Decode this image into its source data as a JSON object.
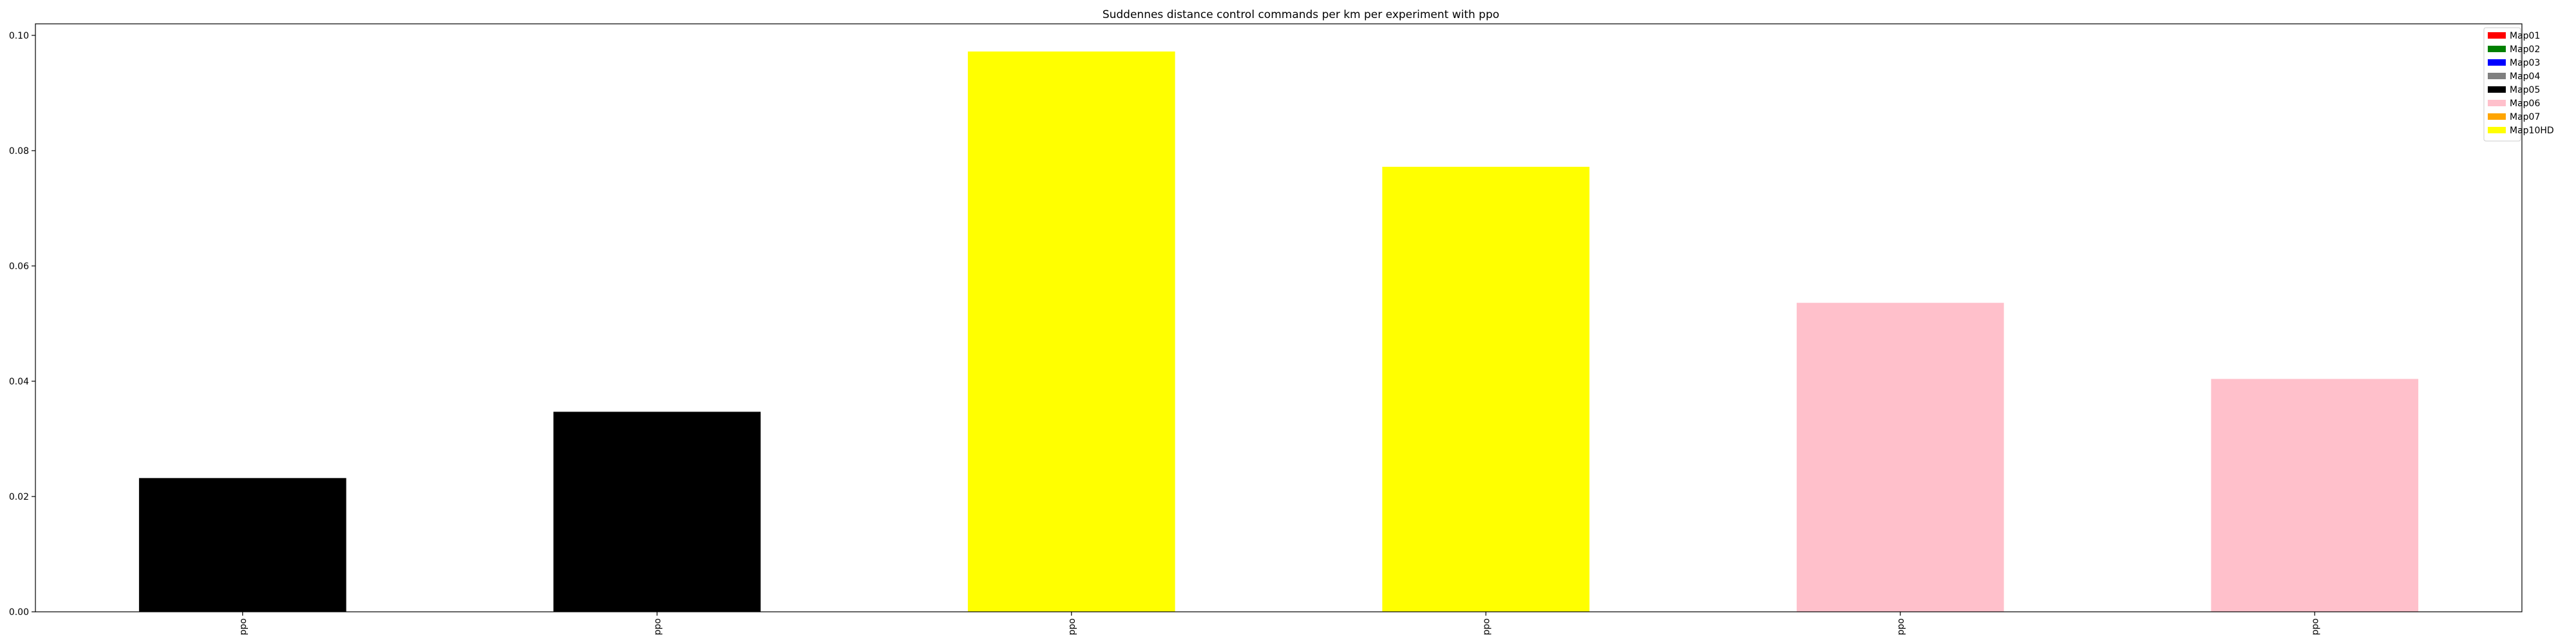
{
  "chart_data": {
    "type": "bar",
    "title": "Suddennes distance control commands per km per experiment with ppo",
    "xlabel": "",
    "ylabel": "",
    "categories": [
      "ppo",
      "ppo",
      "ppo",
      "ppo",
      "ppo",
      "ppo"
    ],
    "values": [
      0.0232,
      0.0347,
      0.0972,
      0.0772,
      0.0536,
      0.0404
    ],
    "bar_colors": [
      "#000000",
      "#000000",
      "#ffff00",
      "#ffff00",
      "#ffc0cb",
      "#ffc0cb"
    ],
    "ylim": [
      0,
      0.102
    ],
    "yticks": [
      "0.00",
      "0.02",
      "0.04",
      "0.06",
      "0.08",
      "0.10"
    ],
    "ytick_values": [
      0,
      0.02,
      0.04,
      0.06,
      0.08,
      0.1
    ],
    "grid": false,
    "legend": {
      "placement": "top-right",
      "entries": [
        {
          "name": "Map01",
          "color": "#ff0000"
        },
        {
          "name": "Map02",
          "color": "#008000"
        },
        {
          "name": "Map03",
          "color": "#0000ff"
        },
        {
          "name": "Map04",
          "color": "#808080"
        },
        {
          "name": "Map05",
          "color": "#000000"
        },
        {
          "name": "Map06",
          "color": "#ffc0cb"
        },
        {
          "name": "Map07",
          "color": "#ffa500"
        },
        {
          "name": "Map10HD",
          "color": "#ffff00"
        }
      ]
    }
  }
}
